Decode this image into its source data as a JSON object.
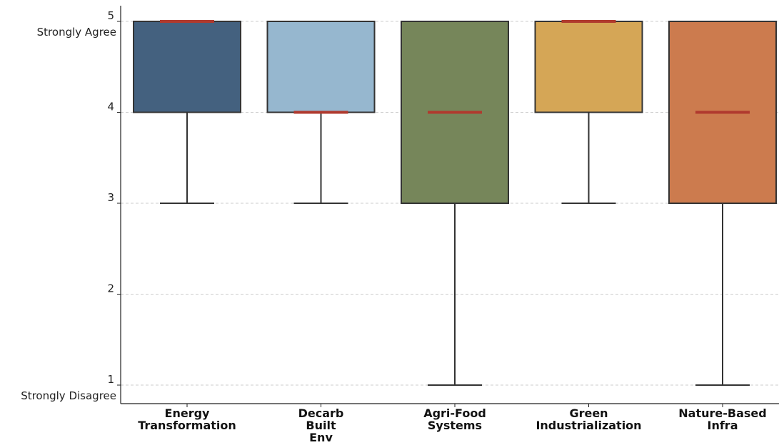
{
  "chart_data": {
    "type": "box",
    "title": "",
    "xlabel": "",
    "ylabel": "",
    "ylim": [
      0.8,
      5.2
    ],
    "yticks": [
      1,
      2,
      3,
      4,
      5
    ],
    "y_anchor_labels": {
      "top": "Strongly Agree",
      "bottom": "Strongly Disagree"
    },
    "grid": "horizontal dashed",
    "categories": [
      {
        "name": "Energy Transformation",
        "label_lines": [
          "Energy",
          "Transformation"
        ],
        "min": 3,
        "q1": 4,
        "median": 5,
        "q3": 5,
        "max": 5,
        "color": "#44617f"
      },
      {
        "name": "Decarb Built Env",
        "label_lines": [
          "Decarb",
          "Built",
          "Env"
        ],
        "min": 3,
        "q1": 4,
        "median": 4,
        "q3": 5,
        "max": 5,
        "color": "#96b7cf"
      },
      {
        "name": "Agri-Food Systems",
        "label_lines": [
          "Agri-Food",
          "Systems"
        ],
        "min": 1,
        "q1": 3,
        "median": 4,
        "q3": 5,
        "max": 5,
        "color": "#76865a"
      },
      {
        "name": "Green Industrialization",
        "label_lines": [
          "Green",
          "Industrialization"
        ],
        "min": 3,
        "q1": 4,
        "median": 5,
        "q3": 5,
        "max": 5,
        "color": "#d5a656"
      },
      {
        "name": "Nature-Based Infra",
        "label_lines": [
          "Nature-Based",
          "Infra"
        ],
        "min": 1,
        "q1": 3,
        "median": 4,
        "q3": 5,
        "max": 5,
        "color": "#cc7b4e"
      }
    ],
    "median_color": "#b03a2e",
    "line_color": "#333333"
  }
}
